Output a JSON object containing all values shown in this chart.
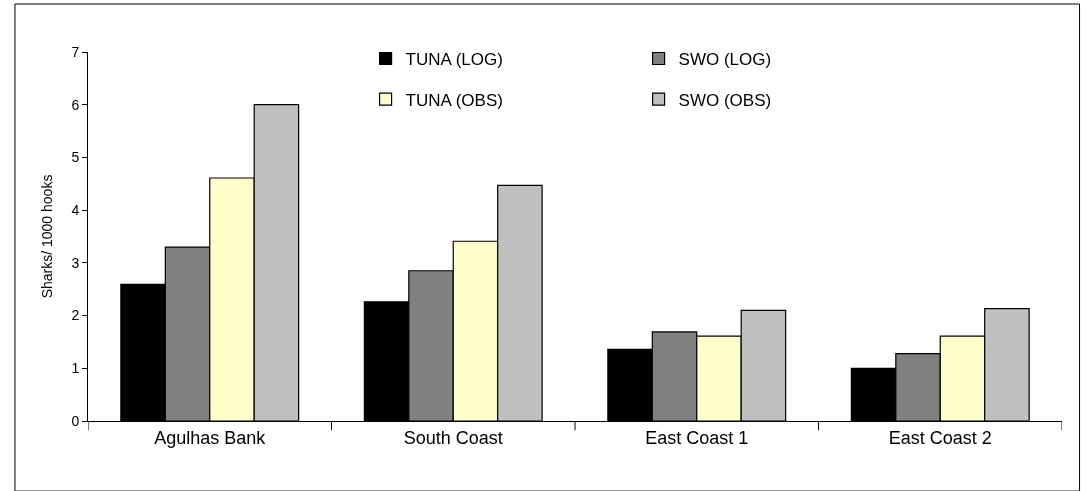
{
  "chart_data": {
    "type": "bar",
    "ylabel": "Sharks/ 1000 hooks",
    "categories": [
      "Agulhas Bank",
      "South Coast",
      "East Coast 1",
      "East Coast 2"
    ],
    "series": [
      {
        "name": "TUNA (LOG)",
        "color": "#000000",
        "values": [
          2.59,
          2.26,
          1.36,
          1.0
        ]
      },
      {
        "name": "SWO (LOG)",
        "color": "#808080",
        "values": [
          3.3,
          2.85,
          1.69,
          1.28
        ]
      },
      {
        "name": "TUNA (OBS)",
        "color": "#ffffcc",
        "values": [
          4.61,
          3.41,
          1.61,
          1.61
        ]
      },
      {
        "name": "SWO (OBS)",
        "color": "#c0c0c0",
        "values": [
          6.0,
          4.47,
          2.1,
          2.13
        ]
      }
    ],
    "ylim": [
      0,
      7
    ],
    "yticks": [
      0,
      1,
      2,
      3,
      4,
      5,
      6,
      7
    ],
    "legend": "top"
  }
}
